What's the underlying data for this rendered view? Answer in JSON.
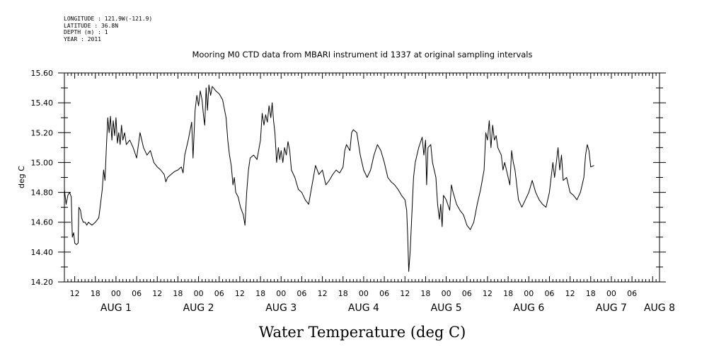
{
  "metadata": [
    "LONGITUDE : 121.9W(-121.9)",
    "LATITUDE : 36.8N",
    "DEPTH (m) : 1",
    "YEAR : 2011"
  ],
  "chart_data": {
    "type": "line",
    "title": "Mooring M0 CTD data from MBARI instrument id 1337 at original sampling intervals",
    "xlabel": "Water Temperature (deg C)",
    "ylabel": "deg C",
    "ylim": [
      14.2,
      15.6
    ],
    "y_ticks": [
      "14.20",
      "14.40",
      "14.60",
      "14.80",
      "15.00",
      "15.20",
      "15.40",
      "15.60"
    ],
    "x_unit": "hours since AUG 1 00:00",
    "xlim": [
      -15,
      158
    ],
    "hour_ticks": [
      {
        "h": -12,
        "label": "12"
      },
      {
        "h": -6,
        "label": "18"
      },
      {
        "h": 0,
        "label": "00"
      },
      {
        "h": 6,
        "label": "06"
      },
      {
        "h": 12,
        "label": "12"
      },
      {
        "h": 18,
        "label": "18"
      },
      {
        "h": 24,
        "label": "00"
      },
      {
        "h": 30,
        "label": "06"
      },
      {
        "h": 36,
        "label": "12"
      },
      {
        "h": 42,
        "label": "18"
      },
      {
        "h": 48,
        "label": "00"
      },
      {
        "h": 54,
        "label": "06"
      },
      {
        "h": 60,
        "label": "12"
      },
      {
        "h": 66,
        "label": "18"
      },
      {
        "h": 72,
        "label": "00"
      },
      {
        "h": 78,
        "label": "06"
      },
      {
        "h": 84,
        "label": "12"
      },
      {
        "h": 90,
        "label": "18"
      },
      {
        "h": 96,
        "label": "00"
      },
      {
        "h": 102,
        "label": "06"
      },
      {
        "h": 108,
        "label": "12"
      },
      {
        "h": 114,
        "label": "18"
      },
      {
        "h": 120,
        "label": "00"
      },
      {
        "h": 126,
        "label": "06"
      },
      {
        "h": 132,
        "label": "12"
      },
      {
        "h": 138,
        "label": "18"
      },
      {
        "h": 144,
        "label": "00"
      },
      {
        "h": 150,
        "label": "06"
      }
    ],
    "day_labels": [
      {
        "h": 0,
        "label": "AUG 1"
      },
      {
        "h": 24,
        "label": "AUG 2"
      },
      {
        "h": 48,
        "label": "AUG 3"
      },
      {
        "h": 72,
        "label": "AUG 4"
      },
      {
        "h": 96,
        "label": "AUG 5"
      },
      {
        "h": 120,
        "label": "AUG 6"
      },
      {
        "h": 144,
        "label": "AUG 7"
      },
      {
        "h": 158,
        "label": "AUG 8"
      }
    ],
    "series": [
      {
        "points": [
          [
            -15,
            14.82
          ],
          [
            -14.5,
            14.72
          ],
          [
            -14,
            14.78
          ],
          [
            -13.5,
            14.8
          ],
          [
            -13,
            14.77
          ],
          [
            -12.7,
            14.5
          ],
          [
            -12.3,
            14.53
          ],
          [
            -12,
            14.46
          ],
          [
            -11.5,
            14.45
          ],
          [
            -11,
            14.46
          ],
          [
            -10.8,
            14.7
          ],
          [
            -10.3,
            14.68
          ],
          [
            -10,
            14.63
          ],
          [
            -9.5,
            14.6
          ],
          [
            -9,
            14.6
          ],
          [
            -8.5,
            14.58
          ],
          [
            -8,
            14.6
          ],
          [
            -7,
            14.58
          ],
          [
            -6,
            14.6
          ],
          [
            -5,
            14.63
          ],
          [
            -4.5,
            14.72
          ],
          [
            -4,
            14.82
          ],
          [
            -3.6,
            14.95
          ],
          [
            -3.2,
            14.88
          ],
          [
            -2.8,
            15.1
          ],
          [
            -2.4,
            15.3
          ],
          [
            -2,
            15.2
          ],
          [
            -1.6,
            15.31
          ],
          [
            -1.2,
            15.15
          ],
          [
            -0.8,
            15.28
          ],
          [
            -0.4,
            15.18
          ],
          [
            0,
            15.3
          ],
          [
            0.4,
            15.13
          ],
          [
            0.8,
            15.2
          ],
          [
            1.2,
            15.12
          ],
          [
            1.6,
            15.25
          ],
          [
            2,
            15.15
          ],
          [
            2.5,
            15.2
          ],
          [
            3,
            15.12
          ],
          [
            4,
            15.15
          ],
          [
            5,
            15.1
          ],
          [
            6,
            15.03
          ],
          [
            7,
            15.2
          ],
          [
            8,
            15.1
          ],
          [
            9,
            15.05
          ],
          [
            10,
            15.08
          ],
          [
            11,
            15.0
          ],
          [
            12,
            14.97
          ],
          [
            13,
            14.95
          ],
          [
            14,
            14.92
          ],
          [
            14.5,
            14.87
          ],
          [
            15,
            14.9
          ],
          [
            16,
            14.92
          ],
          [
            17,
            14.94
          ],
          [
            18,
            14.95
          ],
          [
            19,
            14.97
          ],
          [
            19.5,
            14.93
          ],
          [
            20,
            15.05
          ],
          [
            21,
            15.15
          ],
          [
            22,
            15.27
          ],
          [
            22.4,
            15.03
          ],
          [
            23,
            15.35
          ],
          [
            23.5,
            15.45
          ],
          [
            24,
            15.38
          ],
          [
            24.5,
            15.48
          ],
          [
            25,
            15.42
          ],
          [
            25.5,
            15.3
          ],
          [
            25.8,
            15.25
          ],
          [
            26.2,
            15.5
          ],
          [
            26.6,
            15.35
          ],
          [
            27,
            15.52
          ],
          [
            27.5,
            15.45
          ],
          [
            28,
            15.51
          ],
          [
            29,
            15.48
          ],
          [
            30,
            15.46
          ],
          [
            31,
            15.42
          ],
          [
            32,
            15.3
          ],
          [
            32.5,
            15.15
          ],
          [
            33,
            15.05
          ],
          [
            33.5,
            14.98
          ],
          [
            34,
            14.85
          ],
          [
            34.4,
            14.9
          ],
          [
            34.8,
            14.8
          ],
          [
            35.5,
            14.77
          ],
          [
            36.2,
            14.7
          ],
          [
            37,
            14.65
          ],
          [
            37.5,
            14.58
          ],
          [
            38,
            14.8
          ],
          [
            38.5,
            14.95
          ],
          [
            39,
            15.03
          ],
          [
            40,
            15.05
          ],
          [
            41,
            15.02
          ],
          [
            42,
            15.15
          ],
          [
            42.5,
            15.33
          ],
          [
            43,
            15.25
          ],
          [
            43.5,
            15.32
          ],
          [
            44,
            15.27
          ],
          [
            44.5,
            15.38
          ],
          [
            45,
            15.3
          ],
          [
            45.4,
            15.4
          ],
          [
            45.8,
            15.28
          ],
          [
            46.2,
            15.2
          ],
          [
            46.7,
            15.0
          ],
          [
            47.2,
            15.1
          ],
          [
            47.6,
            15.02
          ],
          [
            48,
            15.08
          ],
          [
            48.5,
            15.0
          ],
          [
            49,
            15.1
          ],
          [
            49.5,
            15.05
          ],
          [
            50,
            15.14
          ],
          [
            50.5,
            15.08
          ],
          [
            51,
            14.95
          ],
          [
            52,
            14.9
          ],
          [
            53,
            14.82
          ],
          [
            54,
            14.8
          ],
          [
            55,
            14.75
          ],
          [
            56,
            14.72
          ],
          [
            57,
            14.85
          ],
          [
            58,
            14.98
          ],
          [
            59,
            14.92
          ],
          [
            60,
            14.95
          ],
          [
            61,
            14.85
          ],
          [
            62,
            14.88
          ],
          [
            63,
            14.92
          ],
          [
            64,
            14.95
          ],
          [
            65,
            14.93
          ],
          [
            66,
            14.97
          ],
          [
            66.5,
            15.08
          ],
          [
            67,
            15.12
          ],
          [
            68,
            15.08
          ],
          [
            68.5,
            15.2
          ],
          [
            69,
            15.22
          ],
          [
            70,
            15.2
          ],
          [
            71,
            15.05
          ],
          [
            72,
            14.95
          ],
          [
            73,
            14.9
          ],
          [
            74,
            14.95
          ],
          [
            75,
            15.05
          ],
          [
            76,
            15.12
          ],
          [
            77,
            15.08
          ],
          [
            78,
            15.0
          ],
          [
            79,
            14.9
          ],
          [
            80,
            14.87
          ],
          [
            81,
            14.85
          ],
          [
            82,
            14.82
          ],
          [
            83,
            14.78
          ],
          [
            84,
            14.75
          ],
          [
            84.5,
            14.68
          ],
          [
            84.8,
            14.5
          ],
          [
            85.1,
            14.27
          ],
          [
            85.5,
            14.4
          ],
          [
            86,
            14.65
          ],
          [
            86.5,
            14.9
          ],
          [
            87,
            15.0
          ],
          [
            88,
            15.1
          ],
          [
            89,
            15.17
          ],
          [
            89.5,
            15.05
          ],
          [
            90,
            15.15
          ],
          [
            90.3,
            14.85
          ],
          [
            90.7,
            15.1
          ],
          [
            91.5,
            15.12
          ],
          [
            92,
            15.0
          ],
          [
            93,
            14.9
          ],
          [
            93.5,
            14.72
          ],
          [
            94,
            14.62
          ],
          [
            94.4,
            14.72
          ],
          [
            94.8,
            14.57
          ],
          [
            95.2,
            14.78
          ],
          [
            96,
            14.75
          ],
          [
            97,
            14.68
          ],
          [
            97.5,
            14.85
          ],
          [
            98,
            14.8
          ],
          [
            99,
            14.72
          ],
          [
            100,
            14.68
          ],
          [
            101,
            14.65
          ],
          [
            102,
            14.58
          ],
          [
            103,
            14.55
          ],
          [
            104,
            14.6
          ],
          [
            105,
            14.72
          ],
          [
            106,
            14.82
          ],
          [
            107,
            14.95
          ],
          [
            107.5,
            15.2
          ],
          [
            108,
            15.15
          ],
          [
            108.5,
            15.28
          ],
          [
            109,
            15.1
          ],
          [
            109.5,
            15.25
          ],
          [
            110,
            15.15
          ],
          [
            110.5,
            15.18
          ],
          [
            111,
            15.1
          ],
          [
            112,
            15.05
          ],
          [
            112.5,
            14.95
          ],
          [
            113,
            15.0
          ],
          [
            114,
            14.9
          ],
          [
            114.5,
            14.85
          ],
          [
            115,
            15.08
          ],
          [
            115.5,
            15.0
          ],
          [
            116,
            14.95
          ],
          [
            117,
            14.75
          ],
          [
            118,
            14.7
          ],
          [
            119,
            14.75
          ],
          [
            120,
            14.8
          ],
          [
            121,
            14.88
          ],
          [
            122,
            14.8
          ],
          [
            123,
            14.75
          ],
          [
            124,
            14.72
          ],
          [
            125,
            14.7
          ],
          [
            126,
            14.8
          ],
          [
            127,
            15.0
          ],
          [
            127.5,
            14.9
          ],
          [
            128,
            15.0
          ],
          [
            128.5,
            15.1
          ],
          [
            129,
            14.95
          ],
          [
            129.5,
            15.05
          ],
          [
            130,
            14.88
          ],
          [
            131,
            14.9
          ],
          [
            132,
            14.8
          ],
          [
            133,
            14.78
          ],
          [
            134,
            14.75
          ],
          [
            135,
            14.8
          ],
          [
            136,
            14.9
          ],
          [
            136.5,
            15.05
          ],
          [
            137,
            15.12
          ],
          [
            137.5,
            15.08
          ],
          [
            138,
            14.97
          ],
          [
            139,
            14.98
          ]
        ]
      }
    ]
  }
}
